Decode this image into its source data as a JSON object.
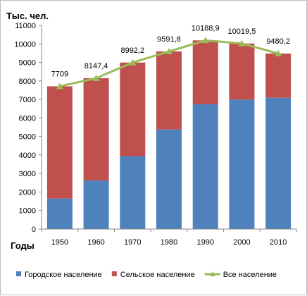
{
  "chart_data": {
    "type": "bar",
    "stacked": true,
    "title": "",
    "ylabel": "Тыс. чел.",
    "xlabel": "Годы",
    "ylim": [
      0,
      11000
    ],
    "yticks": [
      0,
      1000,
      2000,
      3000,
      4000,
      5000,
      6000,
      7000,
      8000,
      9000,
      10000,
      11000
    ],
    "categories": [
      "1950",
      "1960",
      "1970",
      "1980",
      "1990",
      "2000",
      "2010"
    ],
    "grid": false,
    "legend_position": "bottom",
    "series": [
      {
        "name": "Городское население",
        "type": "bar",
        "color": "#4f81bd",
        "values": [
          1650,
          2620,
          3940,
          5380,
          6740,
          6990,
          7090
        ]
      },
      {
        "name": "Сельское население",
        "type": "bar",
        "color": "#c0504d",
        "values": [
          6059,
          5527.4,
          5052.2,
          4211.8,
          3448.9,
          3029.5,
          2390.2
        ]
      },
      {
        "name": "Все население",
        "type": "line",
        "color": "#9bbb59",
        "values": [
          7709,
          8147.4,
          8992.2,
          9591.8,
          10188.9,
          10019.5,
          9480.2
        ],
        "labels": [
          "7709",
          "8147,4",
          "8992,2",
          "9591,8",
          "10188,9",
          "10019,5",
          "9480,2"
        ]
      }
    ]
  }
}
